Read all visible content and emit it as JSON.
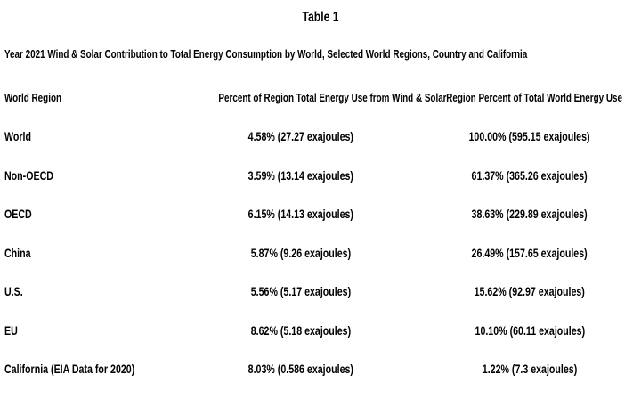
{
  "table": {
    "title": "Table 1",
    "subtitle": "Year 2021 Wind & Solar Contribution to Total Energy Consumption by World, Selected World Regions, Country and California",
    "columns": {
      "region": "World Region",
      "pct_region": "Percent of Region Total Energy Use from Wind & Solar",
      "pct_world": "Region Percent of Total World Energy Use"
    },
    "rows": [
      {
        "region": "World",
        "pct_region": "4.58% (27.27 exajoules)",
        "pct_world": "100.00% (595.15 exajoules)"
      },
      {
        "region": "Non-OECD",
        "pct_region": "3.59% (13.14 exajoules)",
        "pct_world": "61.37% (365.26 exajoules)"
      },
      {
        "region": "OECD",
        "pct_region": "6.15% (14.13 exajoules)",
        "pct_world": "38.63% (229.89 exajoules)"
      },
      {
        "region": "China",
        "pct_region": "5.87% (9.26 exajoules)",
        "pct_world": "26.49% (157.65 exajoules)"
      },
      {
        "region": "U.S.",
        "pct_region": "5.56% (5.17 exajoules)",
        "pct_world": "15.62% (92.97 exajoules)"
      },
      {
        "region": "EU",
        "pct_region": "8.62% (5.18 exajoules)",
        "pct_world": "10.10% (60.11 exajoules)"
      },
      {
        "region": "California (EIA Data for 2020)",
        "pct_region": "8.03% (0.586 exajoules)",
        "pct_world": "1.22% (7.3 exajoules)"
      }
    ],
    "colors": {
      "text": "#000000",
      "background": "#ffffff"
    }
  }
}
